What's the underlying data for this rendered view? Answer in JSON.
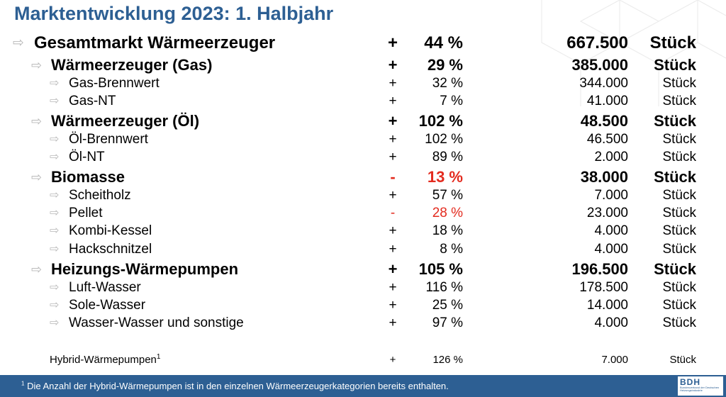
{
  "title": "Marktentwicklung 2023: 1. Halbjahr",
  "arrow_glyph": "⇨",
  "rows": [
    {
      "label": "Gesamtmarkt Wärmeerzeuger",
      "sign": "+",
      "percent": "44 %",
      "value": "667.500",
      "unit": "Stück"
    },
    {
      "label": "Wärmeerzeuger (Gas)",
      "sign": "+",
      "percent": "29 %",
      "value": "385.000",
      "unit": "Stück"
    },
    {
      "label": "Gas-Brennwert",
      "sign": "+",
      "percent": "32 %",
      "value": "344.000",
      "unit": "Stück"
    },
    {
      "label": "Gas-NT",
      "sign": "+",
      "percent": "7 %",
      "value": "41.000",
      "unit": "Stück"
    },
    {
      "label": "Wärmeerzeuger (Öl)",
      "sign": "+",
      "percent": "102 %",
      "value": "48.500",
      "unit": "Stück"
    },
    {
      "label": "Öl-Brennwert",
      "sign": "+",
      "percent": "102 %",
      "value": "46.500",
      "unit": "Stück"
    },
    {
      "label": "Öl-NT",
      "sign": "+",
      "percent": "89 %",
      "value": "2.000",
      "unit": "Stück"
    },
    {
      "label": "Biomasse",
      "sign": "-",
      "percent": "13 %",
      "value": "38.000",
      "unit": "Stück"
    },
    {
      "label": "Scheitholz",
      "sign": "+",
      "percent": "57 %",
      "value": "7.000",
      "unit": "Stück"
    },
    {
      "label": "Pellet",
      "sign": "-",
      "percent": "28 %",
      "value": "23.000",
      "unit": "Stück"
    },
    {
      "label": "Kombi-Kessel",
      "sign": "+",
      "percent": "18 %",
      "value": "4.000",
      "unit": "Stück"
    },
    {
      "label": "Hackschnitzel",
      "sign": "+",
      "percent": "8 %",
      "value": "4.000",
      "unit": "Stück"
    },
    {
      "label": "Heizungs-Wärmepumpen",
      "sign": "+",
      "percent": "105 %",
      "value": "196.500",
      "unit": "Stück"
    },
    {
      "label": "Luft-Wasser",
      "sign": "+",
      "percent": "116 %",
      "value": "178.500",
      "unit": "Stück"
    },
    {
      "label": "Sole-Wasser",
      "sign": "+",
      "percent": "25 %",
      "value": "14.000",
      "unit": "Stück"
    },
    {
      "label": "Wasser-Wasser und sonstige",
      "sign": "+",
      "percent": "97 %",
      "value": "4.000",
      "unit": "Stück"
    }
  ],
  "hybrid": {
    "label": "Hybrid-Wärmepumpen",
    "footnote_mark": "1",
    "sign": "+",
    "percent": "126 %",
    "value": "7.000",
    "unit": "Stück"
  },
  "footer": {
    "footnote_mark": "1",
    "footnote": " Die Anzahl der Hybrid-Wärmepumpen ist in den einzelnen Wärmeerzeugerkategorien bereits enthalten.",
    "logo_text": "BDH",
    "logo_subtext": "Bundesverband der Deutschen Heizungsindustrie"
  },
  "colors": {
    "title": "#2d5f93",
    "negative": "#e32b1f",
    "footer_bg": "#2d5f93",
    "arrow": "#b8b8b8"
  },
  "icons": {
    "bullet": "arrow-right-icon",
    "background": "cube-lines-decoration"
  }
}
